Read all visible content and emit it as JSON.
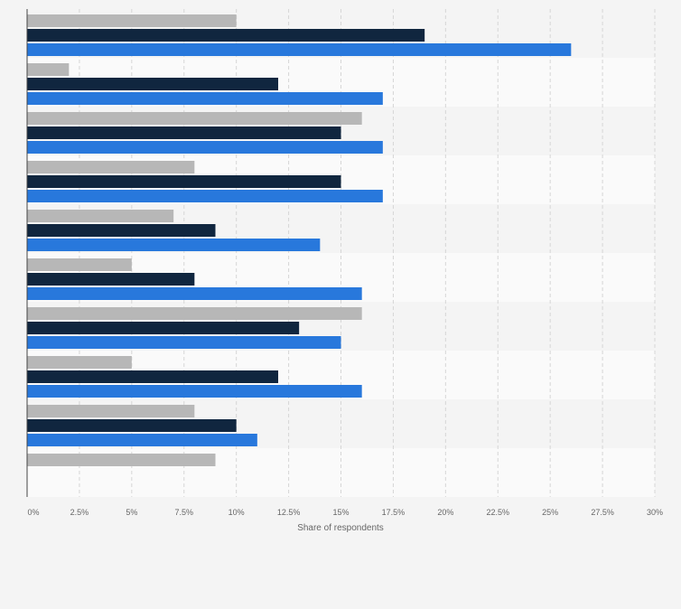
{
  "chart_data": {
    "type": "bar",
    "orientation": "horizontal",
    "title": "",
    "xlabel": "Share of respondents",
    "ylabel": "",
    "xlim": [
      0,
      30
    ],
    "x_ticks": [
      "0%",
      "2.5%",
      "5%",
      "7.5%",
      "10%",
      "12.5%",
      "15%",
      "17.5%",
      "20%",
      "22.5%",
      "25%",
      "27.5%",
      "30%"
    ],
    "grid": true,
    "legend": "none",
    "categories": [
      "",
      "",
      "",
      "",
      "",
      "",
      "",
      "",
      "",
      ""
    ],
    "series": [
      {
        "color": "#b7b7b7",
        "values": [
          10,
          2,
          16,
          8,
          7,
          5,
          16,
          5,
          8,
          9
        ]
      },
      {
        "color": "#10263f",
        "values": [
          19,
          12,
          15,
          15,
          9,
          8,
          13,
          12,
          10,
          null
        ]
      },
      {
        "color": "#2878dc",
        "values": [
          26,
          17,
          17,
          17,
          14,
          16,
          15,
          16,
          11,
          null
        ]
      }
    ]
  }
}
